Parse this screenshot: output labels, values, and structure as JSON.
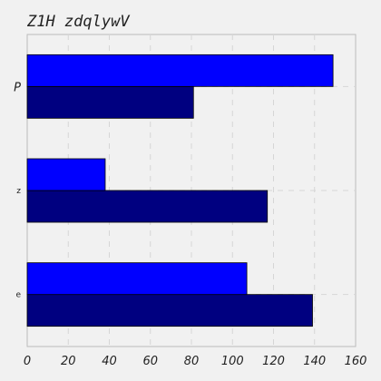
{
  "chart_data": {
    "type": "bar",
    "orientation": "horizontal",
    "title": "Z1H  zdqlywV",
    "xlabel": "",
    "ylabel": "",
    "categories": [
      "e",
      "z",
      "P"
    ],
    "category_order": "bottom-to-top",
    "series": [
      {
        "color": "#000080",
        "values": [
          139,
          117,
          81
        ]
      },
      {
        "color": "#0000ff",
        "values": [
          107,
          38,
          149
        ]
      }
    ],
    "xlim": [
      0,
      160
    ],
    "xticks": [
      "0",
      "20",
      "40",
      "60",
      "80",
      "100",
      "120",
      "140",
      "160"
    ],
    "grid": true,
    "legend": "none"
  }
}
